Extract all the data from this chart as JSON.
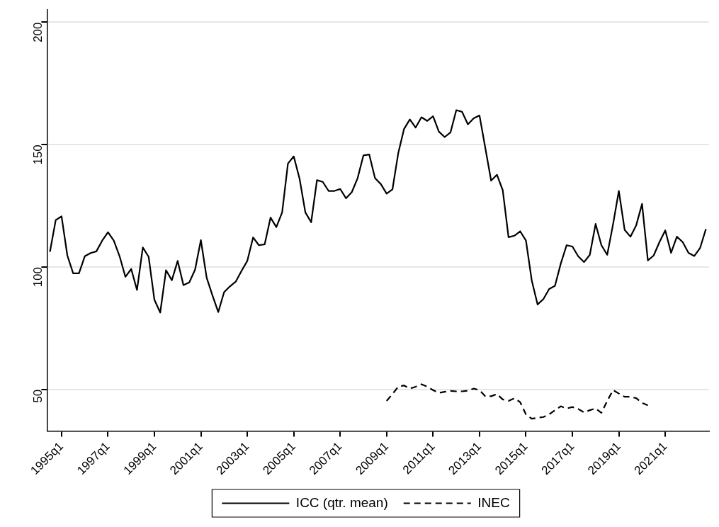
{
  "chart_data": {
    "type": "line",
    "categories": [
      null,
      null,
      "1995q1",
      null,
      null,
      null,
      null,
      null,
      null,
      null,
      "1997q1",
      null,
      null,
      null,
      null,
      null,
      null,
      null,
      "1999q1",
      null,
      null,
      null,
      null,
      null,
      null,
      null,
      "2001q1",
      null,
      null,
      null,
      null,
      null,
      null,
      null,
      "2003q1",
      null,
      null,
      null,
      null,
      null,
      null,
      null,
      "2005q1",
      null,
      null,
      null,
      null,
      null,
      null,
      null,
      "2007q1",
      null,
      null,
      null,
      null,
      null,
      null,
      null,
      "2009q1",
      null,
      null,
      null,
      null,
      null,
      null,
      null,
      "2011q1",
      null,
      null,
      null,
      null,
      null,
      null,
      null,
      "2013q1",
      null,
      null,
      null,
      null,
      null,
      null,
      null,
      "2015q1",
      null,
      null,
      null,
      null,
      null,
      null,
      null,
      "2017q1",
      null,
      null,
      null,
      null,
      null,
      null,
      null,
      "2019q1",
      null,
      null,
      null,
      null,
      null,
      null,
      null,
      "2021q1",
      null,
      null,
      null,
      null,
      null,
      null,
      null
    ],
    "ylim": [
      33,
      205
    ],
    "yticks": [
      50,
      100,
      150,
      200
    ],
    "grid": "y",
    "legend": "bottom",
    "marker": "none",
    "series": [
      {
        "name": "ICC (qtr. mean)",
        "color": "#000000",
        "line_style": "solid",
        "values": [
          106.2,
          119.2,
          120.7,
          104.7,
          97.4,
          97.4,
          104.4,
          105.7,
          106.4,
          110.8,
          114.2,
          110.8,
          104.4,
          96.0,
          99.2,
          90.6,
          108.0,
          104.2,
          86.6,
          81.4,
          98.7,
          94.6,
          102.5,
          92.6,
          93.7,
          98.9,
          111.0,
          95.6,
          88.4,
          81.6,
          89.7,
          92.1,
          94.0,
          98.4,
          102.5,
          112.1,
          108.9,
          109.3,
          120.2,
          116.3,
          122.3,
          142.3,
          145.2,
          136.1,
          122.3,
          118.3,
          135.5,
          134.8,
          131.1,
          131.1,
          131.9,
          128.1,
          130.6,
          136.3,
          145.6,
          146.0,
          136.3,
          133.9,
          130.0,
          131.7,
          146.5,
          156.4,
          160.3,
          157.0,
          161.2,
          159.7,
          161.6,
          155.3,
          153.1,
          155.0,
          164.1,
          163.4,
          158.3,
          160.8,
          161.9,
          148.6,
          135.3,
          137.7,
          131.4,
          112.2,
          112.8,
          114.6,
          110.8,
          94.5,
          84.7,
          86.9,
          91.0,
          92.3,
          101.4,
          108.9,
          108.4,
          104.4,
          102.0,
          105.0,
          117.6,
          108.9,
          105.0,
          117.4,
          131.1,
          115.2,
          112.4,
          117.1,
          125.8,
          102.7,
          104.7,
          110.2,
          115.0,
          105.8,
          112.4,
          110.2,
          105.8,
          104.5,
          107.8,
          115.5
        ]
      },
      {
        "name": "INEC",
        "color": "#000000",
        "line_style": "dashed",
        "values": [
          null,
          null,
          null,
          null,
          null,
          null,
          null,
          null,
          null,
          null,
          null,
          null,
          null,
          null,
          null,
          null,
          null,
          null,
          null,
          null,
          null,
          null,
          null,
          null,
          null,
          null,
          null,
          null,
          null,
          null,
          null,
          null,
          null,
          null,
          null,
          null,
          null,
          null,
          null,
          null,
          null,
          null,
          null,
          null,
          null,
          null,
          null,
          null,
          null,
          null,
          null,
          null,
          null,
          null,
          null,
          null,
          null,
          null,
          45.3,
          48.1,
          51.1,
          51.6,
          50.3,
          51.1,
          52.1,
          51.1,
          49.7,
          48.6,
          49.0,
          49.4,
          49.2,
          49.2,
          49.5,
          50.3,
          49.7,
          47.2,
          47.2,
          48.1,
          45.9,
          45.3,
          46.4,
          44.8,
          39.8,
          38.0,
          38.4,
          38.7,
          39.8,
          41.5,
          43.1,
          42.2,
          42.8,
          42.0,
          40.6,
          41.5,
          42.2,
          40.4,
          45.3,
          49.7,
          48.3,
          47.0,
          47.0,
          46.4,
          44.5,
          43.5,
          null,
          null,
          null,
          null,
          null,
          null,
          null,
          null,
          null,
          null
        ]
      }
    ]
  }
}
